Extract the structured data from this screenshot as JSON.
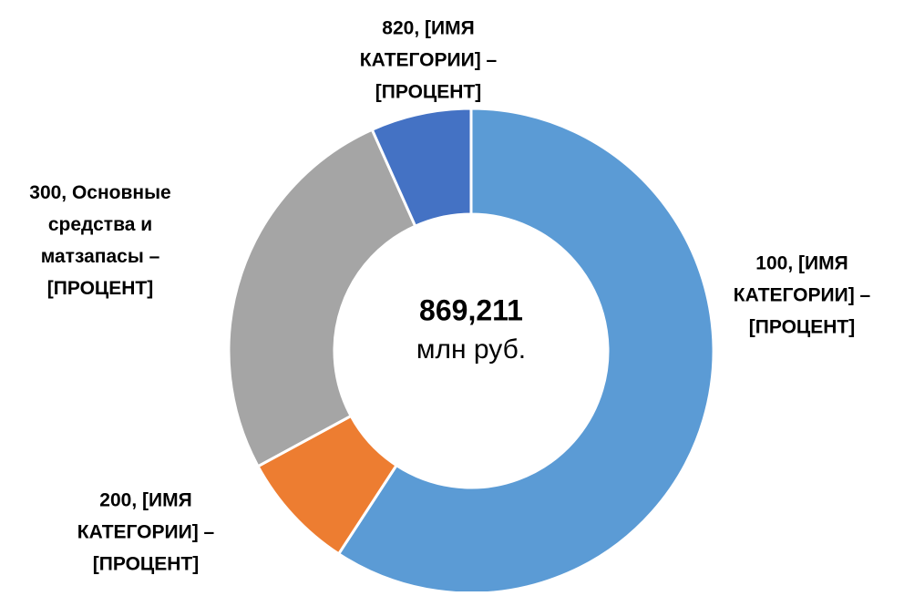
{
  "chart_data": {
    "type": "donut",
    "center_value": "869,211",
    "center_unit": "млн руб.",
    "categories": [
      [
        "100, [ИМЯ",
        "КАТЕГОРИИ] –",
        "[ПРОЦЕНТ]"
      ],
      [
        "200, [ИМЯ",
        "КАТЕГОРИИ] –",
        "[ПРОЦЕНТ]"
      ],
      [
        "300, Основные",
        "средства и",
        "матзапасы –",
        "[ПРОЦЕНТ]"
      ],
      [
        "820, [ИМЯ",
        "КАТЕГОРИИ] –",
        "[ПРОЦЕНТ]"
      ]
    ],
    "values": [
      59.2,
      7.9,
      26.2,
      6.7
    ],
    "colors": [
      "#5b9bd5",
      "#ed7d31",
      "#a5a5a5",
      "#4472c4"
    ]
  }
}
